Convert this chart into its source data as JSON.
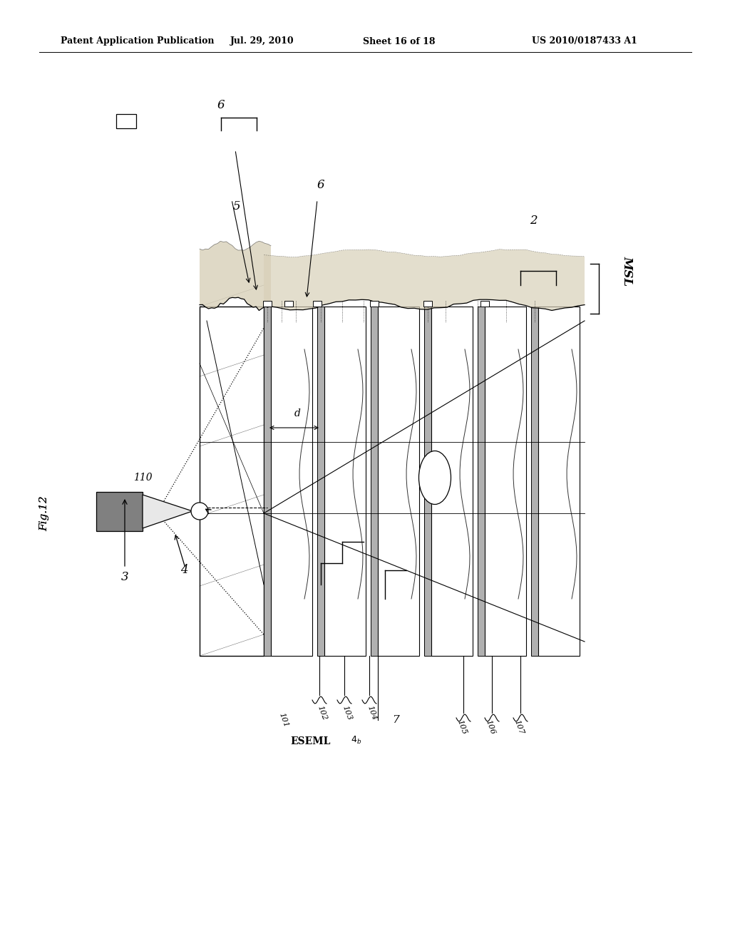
{
  "bg_color": "#ffffff",
  "header_text": "Patent Application Publication",
  "header_date": "Jul. 29, 2010",
  "header_sheet": "Sheet 16 of 18",
  "header_patent": "US 2010/0187433 A1",
  "fig_label": "Fig.12",
  "gray_fill": "#c0c0c0",
  "dark_gray": "#808080",
  "light_gray": "#e8e8e8",
  "white": "#ffffff",
  "black": "#000000",
  "plate_color": "#f0f0f0",
  "spacer_color": "#b0b0b0",
  "top_surface_color": "#d8d0b8"
}
